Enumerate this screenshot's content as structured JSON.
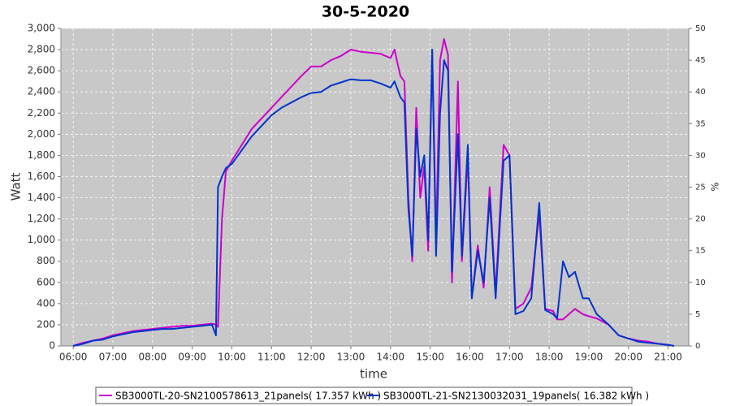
{
  "chart_data": {
    "type": "line",
    "title": "30-5-2020",
    "xlabel": "time",
    "ylabel": "Watt",
    "y2label": "%",
    "grid": true,
    "legend": "bottom",
    "x": [
      6.0,
      6.25,
      6.5,
      6.75,
      7.0,
      7.25,
      7.5,
      7.75,
      8.0,
      8.25,
      8.5,
      8.75,
      9.0,
      9.25,
      9.5,
      9.6,
      9.65,
      9.75,
      9.85,
      10.0,
      10.25,
      10.5,
      10.75,
      11.0,
      11.25,
      11.5,
      11.75,
      12.0,
      12.25,
      12.5,
      12.75,
      13.0,
      13.25,
      13.5,
      13.75,
      14.0,
      14.1,
      14.25,
      14.35,
      14.45,
      14.55,
      14.65,
      14.75,
      14.85,
      14.95,
      15.05,
      15.15,
      15.25,
      15.35,
      15.45,
      15.55,
      15.7,
      15.8,
      15.95,
      16.05,
      16.2,
      16.35,
      16.5,
      16.65,
      16.85,
      17.0,
      17.15,
      17.35,
      17.55,
      17.75,
      17.9,
      18.1,
      18.2,
      18.35,
      18.5,
      18.65,
      18.85,
      19.0,
      19.2,
      19.5,
      19.75,
      20.0,
      20.25,
      20.5,
      20.75,
      21.0,
      21.15
    ],
    "series": [
      {
        "name": "SB3000TL-20-SN2100578613_21panels( 17.357 kWh )",
        "color": "#cc00cc",
        "values": [
          0,
          30,
          50,
          70,
          100,
          120,
          140,
          150,
          160,
          170,
          180,
          190,
          190,
          200,
          210,
          200,
          180,
          1200,
          1650,
          1750,
          1900,
          2050,
          2150,
          2250,
          2350,
          2450,
          2550,
          2640,
          2640,
          2700,
          2740,
          2800,
          2780,
          2770,
          2760,
          2720,
          2800,
          2550,
          2500,
          1400,
          800,
          2250,
          1400,
          1700,
          900,
          2800,
          1000,
          2700,
          2900,
          2750,
          600,
          2500,
          800,
          1800,
          450,
          950,
          550,
          1500,
          500,
          1900,
          1800,
          350,
          400,
          550,
          1250,
          350,
          330,
          250,
          250,
          300,
          350,
          300,
          280,
          260,
          200,
          100,
          70,
          50,
          40,
          20,
          10,
          0
        ]
      },
      {
        "name": "SB3000TL-21-SN2130032031_19panels( 16.382 kWh )",
        "color": "#0033cc",
        "values": [
          0,
          20,
          50,
          60,
          90,
          110,
          130,
          140,
          150,
          160,
          160,
          170,
          180,
          190,
          200,
          100,
          1500,
          1600,
          1680,
          1720,
          1850,
          1980,
          2080,
          2180,
          2250,
          2300,
          2350,
          2390,
          2400,
          2460,
          2490,
          2520,
          2510,
          2510,
          2480,
          2440,
          2500,
          2350,
          2300,
          1300,
          850,
          2050,
          1600,
          1800,
          1000,
          2800,
          850,
          2200,
          2700,
          2600,
          700,
          2000,
          850,
          1900,
          450,
          900,
          600,
          1400,
          450,
          1750,
          1800,
          300,
          330,
          450,
          1350,
          340,
          300,
          260,
          800,
          650,
          700,
          450,
          450,
          300,
          200,
          100,
          70,
          40,
          30,
          20,
          10,
          0
        ]
      }
    ],
    "xlim": [
      5.69,
      21.52
    ],
    "xticks": [
      {
        "value": 6,
        "label": "06:00"
      },
      {
        "value": 7,
        "label": "07:00"
      },
      {
        "value": 8,
        "label": "08:00"
      },
      {
        "value": 9,
        "label": "09:00"
      },
      {
        "value": 10,
        "label": "10:00"
      },
      {
        "value": 11,
        "label": "11:00"
      },
      {
        "value": 12,
        "label": "12:00"
      },
      {
        "value": 13,
        "label": "13:00"
      },
      {
        "value": 14,
        "label": "14:00"
      },
      {
        "value": 15,
        "label": "15:00"
      },
      {
        "value": 16,
        "label": "16:00"
      },
      {
        "value": 17,
        "label": "17:00"
      },
      {
        "value": 18,
        "label": "18:00"
      },
      {
        "value": 19,
        "label": "19:00"
      },
      {
        "value": 20,
        "label": "20:00"
      },
      {
        "value": 21,
        "label": "21:00"
      }
    ],
    "ylim": [
      0,
      3000
    ],
    "yticks": [
      0,
      200,
      400,
      600,
      800,
      {
        "value": 1000,
        "label": "1,000"
      },
      {
        "value": 1200,
        "label": "1,200"
      },
      {
        "value": 1400,
        "label": "1,400"
      },
      {
        "value": 1600,
        "label": "1,600"
      },
      {
        "value": 1800,
        "label": "1,800"
      },
      {
        "value": 2000,
        "label": "2,000"
      },
      {
        "value": 2200,
        "label": "2,200"
      },
      {
        "value": 2400,
        "label": "2,400"
      },
      {
        "value": 2600,
        "label": "2,600"
      },
      {
        "value": 2800,
        "label": "2,800"
      },
      {
        "value": 3000,
        "label": "3,000"
      }
    ],
    "y2lim": [
      0,
      50
    ],
    "y2ticks": [
      0,
      5,
      10,
      15,
      20,
      25,
      30,
      35,
      40,
      45,
      50
    ]
  }
}
